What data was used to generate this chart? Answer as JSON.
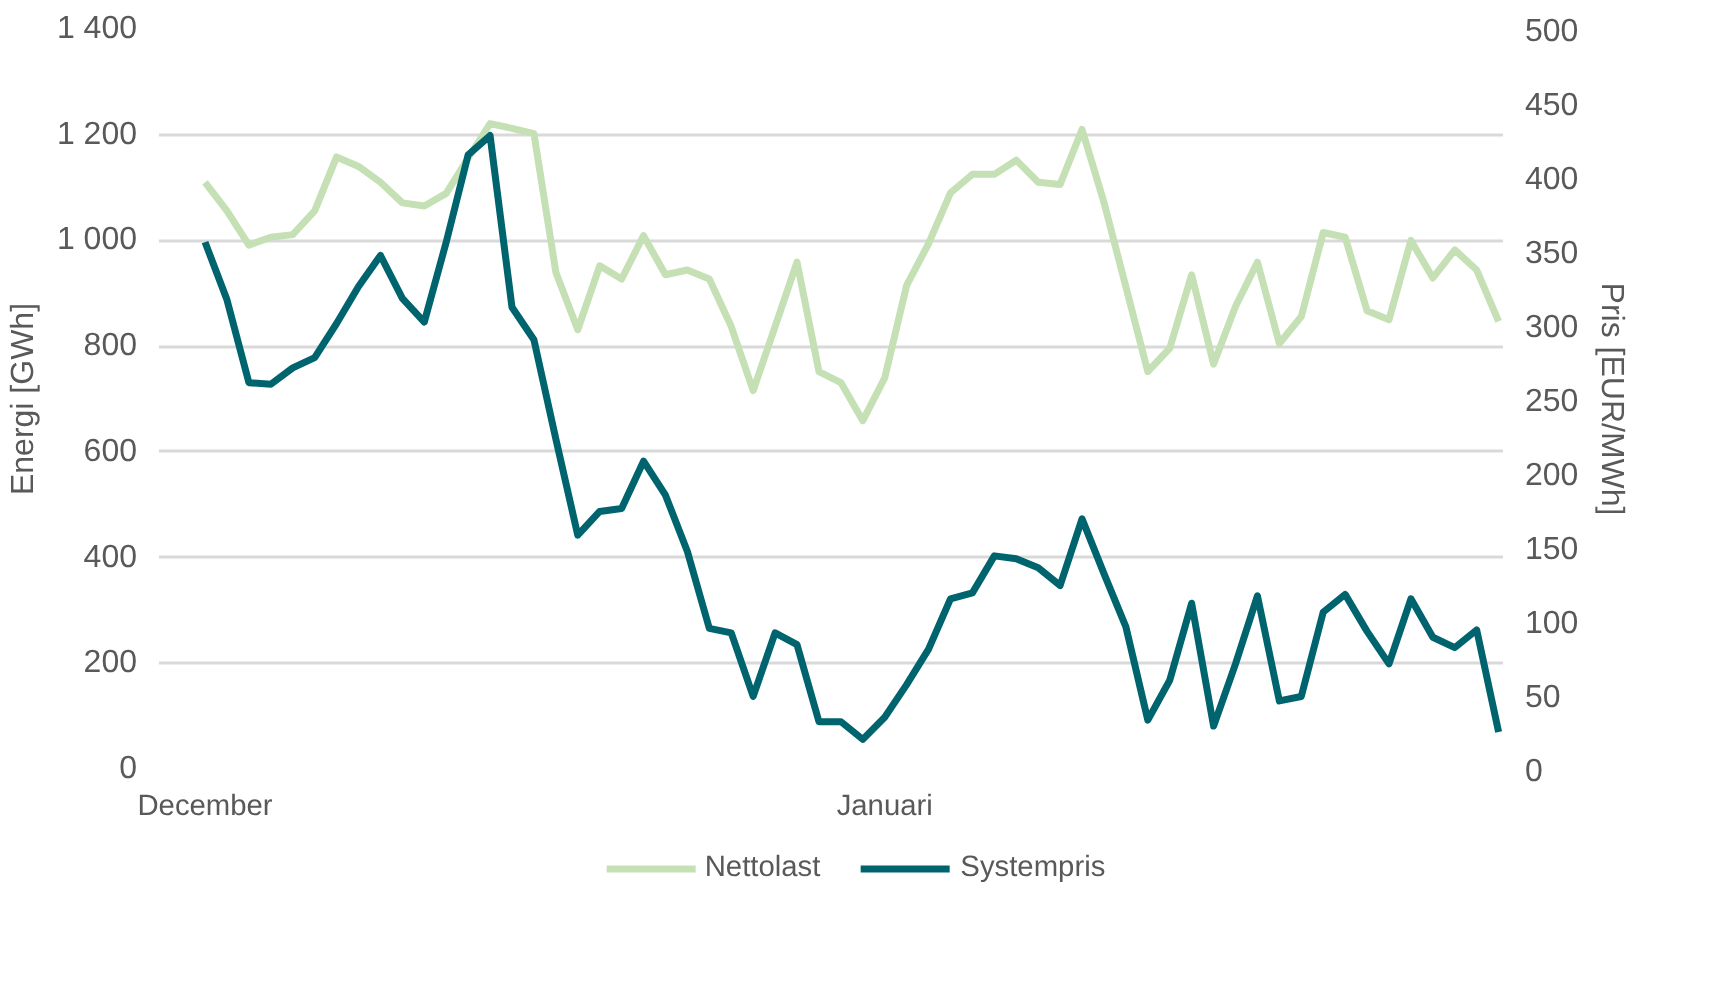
{
  "chart_data": {
    "type": "line",
    "ylabel": "Energi [GWh]",
    "y2label": "Pris [EUR/MWh]",
    "categories": [
      "December",
      null,
      null,
      null,
      null,
      null,
      null,
      null,
      null,
      null,
      null,
      null,
      null,
      null,
      null,
      null,
      null,
      null,
      null,
      null,
      null,
      null,
      null,
      null,
      null,
      null,
      null,
      null,
      null,
      null,
      null,
      "Januari",
      null,
      null,
      null,
      null,
      null,
      null,
      null,
      null,
      null,
      null,
      null,
      null,
      null,
      null,
      null,
      null,
      null,
      null,
      null,
      null,
      null,
      null,
      null,
      null,
      null,
      null,
      null,
      null
    ],
    "series": [
      {
        "name": "Nettolast",
        "color": "#c5e0b4",
        "values": [
          1110,
          1056,
          991,
          1006,
          1011,
          1056,
          1158,
          1140,
          1110,
          1071,
          1065,
          1089,
          1156,
          1221,
          1212,
          1202,
          940,
          831,
          952,
          927,
          1009,
          935,
          944,
          927,
          837,
          716,
          837,
          959,
          752,
          731,
          659,
          740,
          915,
          994,
          1090,
          1125,
          1125,
          1152,
          1110,
          1106,
          1210,
          1072,
          912,
          752,
          796,
          935,
          766,
          875,
          959,
          805,
          856,
          1015,
          1006,
          867,
          850,
          1000,
          929,
          982,
          944,
          847
        ]
      },
      {
        "name": "Systempris",
        "color": "#00646e",
        "axis": "y2",
        "values": [
          356,
          317,
          261,
          260,
          271,
          278,
          301,
          326,
          347,
          318,
          302,
          356,
          415,
          428,
          312,
          290,
          223,
          158,
          174,
          176,
          208,
          185,
          147,
          95,
          92,
          49,
          92,
          84,
          32,
          32,
          20,
          35,
          57,
          81,
          115,
          119,
          144,
          142,
          136,
          124,
          169,
          132,
          96,
          33,
          60,
          112,
          29,
          71,
          117,
          46,
          49,
          106,
          118,
          93,
          71,
          115,
          89,
          82,
          94,
          25
        ]
      }
    ],
    "ylim": [
      0,
      1400
    ],
    "yticks": [
      {
        "value": 0,
        "label": "0"
      },
      {
        "value": 200,
        "label": "200"
      },
      {
        "value": 400,
        "label": "400"
      },
      {
        "value": 600,
        "label": "600"
      },
      {
        "value": 800,
        "label": "800"
      },
      {
        "value": 1000,
        "label": "1 000"
      },
      {
        "value": 1200,
        "label": "1 200"
      },
      {
        "value": 1400,
        "label": "1 400"
      }
    ],
    "y2lim": [
      0,
      500
    ],
    "y2ticks": [
      0,
      50,
      100,
      150,
      200,
      250,
      300,
      350,
      400,
      450,
      500
    ],
    "grid": "y",
    "legend": "bottom",
    "marker": "none",
    "line_style": "solid"
  }
}
